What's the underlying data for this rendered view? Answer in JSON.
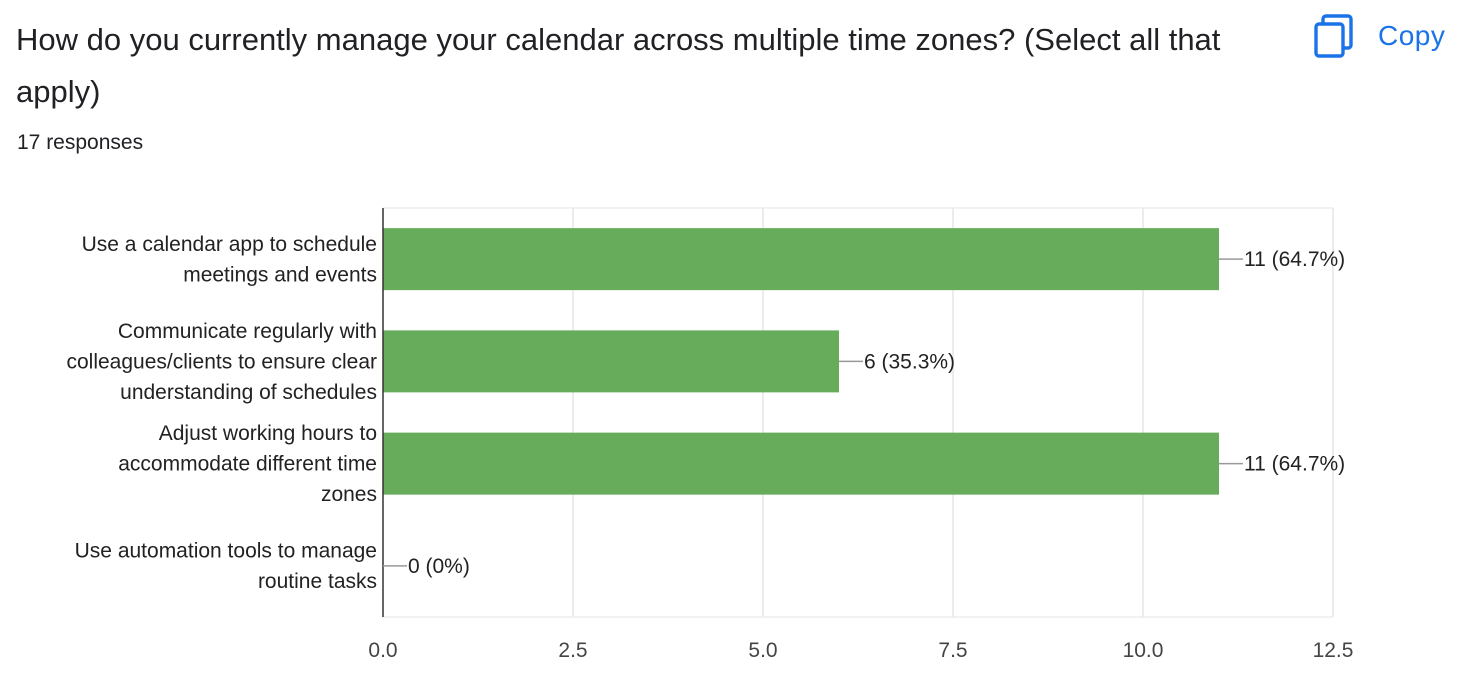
{
  "question": {
    "title": "How do you currently manage your calendar across multiple time zones? (Select all that apply)",
    "responses": "17 responses"
  },
  "copy_button": {
    "label": "Copy",
    "icon": "copy-icon",
    "color": "#1a73e8"
  },
  "chart_data": {
    "type": "bar",
    "orientation": "horizontal",
    "categories": [
      [
        "Use a calendar app to schedule",
        "meetings and events"
      ],
      [
        "Communicate regularly with",
        "colleagues/clients to ensure clear",
        "understanding of schedules"
      ],
      [
        "Adjust working hours to",
        "accommodate different time",
        "zones"
      ],
      [
        "Use automation tools to manage",
        "routine tasks"
      ]
    ],
    "values": [
      11,
      6,
      11,
      0
    ],
    "data_labels": [
      "11 (64.7%)",
      "6 (35.3%)",
      "11 (64.7%)",
      "0 (0%)"
    ],
    "xlim": [
      0,
      12.5
    ],
    "x_ticks": [
      "0.0",
      "2.5",
      "5.0",
      "7.5",
      "10.0",
      "12.5"
    ],
    "grid": true,
    "bar_color": "#67ac5b"
  }
}
